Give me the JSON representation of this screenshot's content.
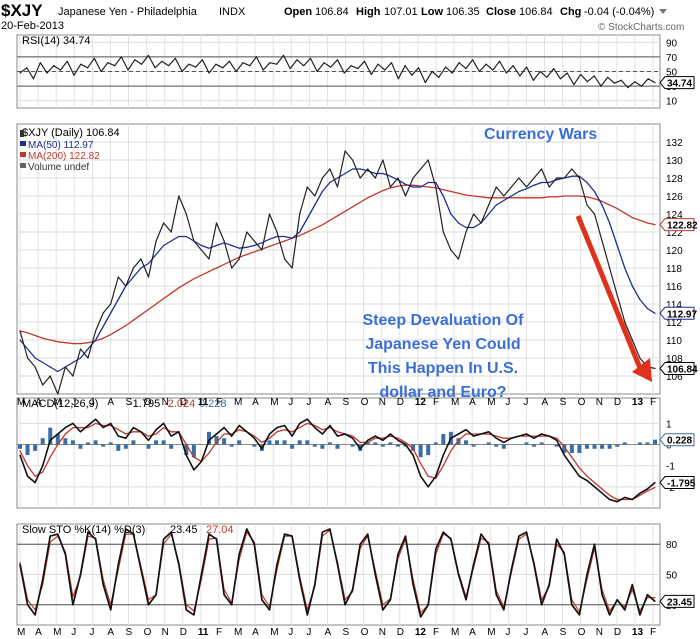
{
  "header": {
    "symbol": "$XJY",
    "name": "Japanese Yen - Philadelphia",
    "exchange": "INDX",
    "date": "20-Feb-2013",
    "open_label": "Open",
    "open": "106.84",
    "high_label": "High",
    "high": "107.01",
    "low_label": "Low",
    "low": "106.35",
    "close_label": "Close",
    "close": "106.84",
    "chg_label": "Chg",
    "chg": "-0.04 (-0.04%)",
    "watermark": "© StockCharts.com"
  },
  "annotations": {
    "currency_wars": "Currency Wars",
    "devaluation_lines": [
      "Steep Devaluation Of",
      "Japanese Yen Could",
      "This Happen In U.S.",
      "dollar and Euro?"
    ]
  },
  "colors": {
    "price": "#222222",
    "ma50": "#1f2f8c",
    "ma200": "#c0392b",
    "annotation_text": "#3b6fd8",
    "arrow": "#e0301e",
    "histogram": "#3a6ea5",
    "grid": "#d8d8d8"
  },
  "x_axis": {
    "months": [
      "M",
      "A",
      "M",
      "J",
      "J",
      "A",
      "S",
      "O",
      "N",
      "D",
      "11",
      "F",
      "M",
      "A",
      "M",
      "J",
      "J",
      "A",
      "S",
      "O",
      "N",
      "D",
      "12",
      "F",
      "M",
      "A",
      "M",
      "J",
      "J",
      "A",
      "S",
      "O",
      "N",
      "D",
      "13",
      "F"
    ],
    "year_markers": [
      "11",
      "12",
      "13"
    ]
  },
  "chart_data": [
    {
      "type": "line",
      "panel": "rsi",
      "legend": "RSI(14) 34.74",
      "last_value_tag": "34.74",
      "ylim": [
        0,
        100
      ],
      "yticks": [
        10,
        30,
        50,
        70,
        90
      ],
      "reference_lines": [
        30,
        50,
        70
      ],
      "series": [
        {
          "name": "RSI(14)",
          "values": [
            48,
            55,
            40,
            62,
            48,
            58,
            52,
            64,
            45,
            60,
            55,
            68,
            50,
            62,
            58,
            70,
            52,
            66,
            60,
            72,
            55,
            64,
            58,
            68,
            50,
            60,
            56,
            66,
            48,
            60,
            55,
            64,
            50,
            62,
            58,
            70,
            52,
            62,
            60,
            72,
            54,
            66,
            58,
            68,
            50,
            62,
            56,
            66,
            48,
            58,
            54,
            64,
            46,
            60,
            52,
            62,
            40,
            58,
            45,
            55,
            35,
            50,
            42,
            56,
            48,
            62,
            54,
            66,
            50,
            60,
            52,
            64,
            48,
            58,
            44,
            56,
            38,
            50,
            42,
            54,
            40,
            48,
            32,
            46,
            36,
            44,
            30,
            42,
            34,
            38,
            28,
            36,
            30,
            40,
            34.74
          ]
        }
      ]
    },
    {
      "type": "line",
      "panel": "price",
      "legend": [
        "$XJY (Daily) 106.84",
        "MA(50) 112.97",
        "MA(200) 122.82",
        "Volume undef"
      ],
      "last_value_tags": [
        "122.82",
        "112.97",
        "106.84"
      ],
      "ylim": [
        104,
        134
      ],
      "yticks": [
        106,
        108,
        110,
        112,
        114,
        116,
        118,
        120,
        122,
        124,
        126,
        128,
        130,
        132
      ],
      "series": [
        {
          "name": "$XJY",
          "values": [
            111,
            108,
            107,
            105,
            106,
            104,
            107,
            106,
            109,
            108,
            111,
            113,
            114,
            117,
            116,
            118,
            119,
            117,
            121,
            123,
            122,
            126,
            124,
            121,
            120,
            119,
            123,
            121,
            118,
            119,
            122,
            121,
            120,
            124,
            122,
            119,
            118,
            124,
            127,
            126,
            128,
            129,
            127,
            131,
            130,
            128,
            129,
            128,
            130,
            127,
            128,
            126,
            128,
            129,
            130,
            127,
            122,
            120,
            119,
            122,
            124,
            123,
            125,
            127,
            126,
            127,
            128,
            127,
            128,
            129,
            127,
            128,
            128,
            129,
            128,
            125,
            124,
            121,
            118,
            115,
            112,
            110,
            108,
            107,
            106.84
          ]
        },
        {
          "name": "MA(50)",
          "values": [
            110,
            109,
            108,
            107.5,
            107,
            106.5,
            107,
            107.5,
            108,
            109,
            110,
            111.5,
            113,
            114.5,
            116,
            117,
            118,
            118.5,
            119.5,
            120.5,
            121,
            121.5,
            121.5,
            121,
            120.5,
            120.2,
            120.5,
            120.8,
            120.5,
            120.2,
            120.3,
            120.5,
            120.8,
            121.2,
            121.5,
            121.5,
            121.3,
            122,
            123.5,
            125,
            126.5,
            127.5,
            128,
            128.5,
            129,
            129,
            128.8,
            128.5,
            128.5,
            128.2,
            127.8,
            127.3,
            127,
            127,
            127.5,
            127.5,
            126,
            124,
            123,
            122.5,
            122.5,
            123,
            124,
            125,
            125.5,
            126,
            126.5,
            126.8,
            127.2,
            127.5,
            127.5,
            127.8,
            128,
            128.2,
            128.2,
            127.5,
            126.5,
            125,
            123,
            120.5,
            118,
            116,
            114.5,
            113.5,
            112.97
          ]
        },
        {
          "name": "MA(200)",
          "values": [
            111,
            110.8,
            110.5,
            110.2,
            110,
            109.8,
            109.7,
            109.6,
            109.6,
            109.7,
            109.9,
            110.2,
            110.6,
            111.1,
            111.6,
            112.2,
            112.8,
            113.4,
            114,
            114.6,
            115.2,
            115.8,
            116.3,
            116.8,
            117.2,
            117.6,
            118,
            118.4,
            118.8,
            119.2,
            119.5,
            119.8,
            120.1,
            120.4,
            120.7,
            121,
            121.3,
            121.6,
            122,
            122.4,
            122.8,
            123.3,
            123.8,
            124.3,
            124.8,
            125.3,
            125.8,
            126.2,
            126.6,
            126.9,
            127.1,
            127.2,
            127.2,
            127.1,
            127,
            126.9,
            126.7,
            126.5,
            126.3,
            126.1,
            126,
            125.9,
            125.8,
            125.8,
            125.8,
            125.8,
            125.8,
            125.8,
            125.8,
            125.8,
            125.9,
            125.9,
            126,
            126,
            126,
            125.9,
            125.7,
            125.4,
            125,
            124.6,
            124.1,
            123.6,
            123.3,
            123,
            122.82
          ]
        }
      ]
    },
    {
      "type": "line",
      "panel": "macd",
      "legend": [
        "MACD(12,26,9)",
        "-1.795",
        "-2.024",
        "0.228"
      ],
      "last_value_tags": [
        "0.228",
        "-1.795"
      ],
      "ylim": [
        -3,
        2.2
      ],
      "yticks": [
        -2,
        -1,
        0,
        1
      ],
      "series": [
        {
          "name": "MACD",
          "values": [
            -0.5,
            -1.5,
            -1.8,
            -1,
            0.2,
            0.5,
            0.8,
            1,
            0.6,
            0.9,
            1.2,
            0.8,
            1,
            0.4,
            0.3,
            0.8,
            0.6,
            0.2,
            0.7,
            1,
            0.4,
            0.6,
            -0.5,
            -1.2,
            -0.8,
            0.2,
            0.5,
            0.8,
            0.4,
            0.9,
            0.6,
            0.3,
            -0.2,
            0.5,
            0.8,
            0.9,
            0.4,
            1,
            1.2,
            0.8,
            0.5,
            0.9,
            0.4,
            0.5,
            0.3,
            -0.2,
            0.2,
            0.4,
            0.2,
            0.5,
            0.2,
            0,
            -0.5,
            -1.5,
            -2,
            -1.5,
            -0.5,
            0.3,
            0.5,
            0.7,
            0.4,
            0.5,
            0.6,
            0.3,
            0.1,
            0.3,
            0.4,
            0.5,
            0.3,
            0.5,
            0.4,
            0.2,
            -0.5,
            -1,
            -1.5,
            -1.7,
            -2,
            -2.3,
            -2.6,
            -2.7,
            -2.5,
            -2.6,
            -2.3,
            -2.1,
            -1.795
          ]
        },
        {
          "name": "Signal",
          "values": [
            -0.3,
            -1,
            -1.5,
            -1.3,
            -0.6,
            0,
            0.5,
            0.8,
            0.8,
            0.8,
            1,
            0.9,
            0.9,
            0.7,
            0.5,
            0.6,
            0.6,
            0.4,
            0.5,
            0.8,
            0.6,
            0.6,
            0,
            -0.6,
            -0.8,
            -0.4,
            0.1,
            0.5,
            0.5,
            0.7,
            0.6,
            0.4,
            0.1,
            0.3,
            0.6,
            0.7,
            0.6,
            0.8,
            1,
            0.9,
            0.7,
            0.8,
            0.6,
            0.5,
            0.4,
            0.1,
            0.1,
            0.3,
            0.3,
            0.4,
            0.3,
            0.1,
            -0.2,
            -0.9,
            -1.5,
            -1.6,
            -1,
            -0.3,
            0.2,
            0.5,
            0.5,
            0.5,
            0.5,
            0.4,
            0.3,
            0.3,
            0.4,
            0.4,
            0.4,
            0.4,
            0.4,
            0.3,
            -0.1,
            -0.6,
            -1.1,
            -1.5,
            -1.8,
            -2.1,
            -2.4,
            -2.6,
            -2.6,
            -2.6,
            -2.4,
            -2.2,
            -2.024
          ]
        }
      ]
    },
    {
      "type": "line",
      "panel": "stochastic",
      "legend": [
        "Slow STO %K(14) %D(3)",
        "23.45",
        "27.04"
      ],
      "last_value_tag": "23.45",
      "ylim": [
        0,
        100
      ],
      "yticks": [
        20,
        50,
        80
      ],
      "reference_lines": [
        20,
        80
      ],
      "series": [
        {
          "name": "%K",
          "values": [
            60,
            20,
            10,
            45,
            88,
            90,
            70,
            20,
            50,
            92,
            85,
            40,
            15,
            60,
            95,
            90,
            55,
            20,
            30,
            85,
            92,
            60,
            15,
            10,
            50,
            90,
            85,
            30,
            20,
            70,
            95,
            80,
            25,
            15,
            60,
            90,
            88,
            45,
            10,
            40,
            92,
            95,
            60,
            20,
            35,
            80,
            90,
            50,
            15,
            25,
            70,
            88,
            40,
            8,
            20,
            75,
            92,
            85,
            50,
            25,
            60,
            90,
            80,
            30,
            15,
            55,
            88,
            92,
            60,
            20,
            40,
            85,
            70,
            20,
            10,
            50,
            80,
            30,
            10,
            25,
            15,
            40,
            10,
            30,
            23.45
          ]
        },
        {
          "name": "%D",
          "values": [
            62,
            25,
            15,
            40,
            82,
            88,
            72,
            28,
            48,
            88,
            86,
            45,
            20,
            55,
            90,
            90,
            58,
            25,
            30,
            80,
            90,
            62,
            20,
            14,
            45,
            85,
            86,
            35,
            22,
            65,
            92,
            82,
            30,
            18,
            55,
            88,
            88,
            48,
            15,
            38,
            88,
            94,
            62,
            25,
            33,
            76,
            88,
            54,
            20,
            26,
            66,
            85,
            45,
            12,
            20,
            70,
            90,
            86,
            52,
            28,
            57,
            86,
            82,
            34,
            18,
            52,
            85,
            90,
            62,
            25,
            38,
            80,
            72,
            25,
            13,
            45,
            76,
            35,
            14,
            24,
            18,
            35,
            14,
            27,
            27.04
          ]
        }
      ]
    }
  ]
}
